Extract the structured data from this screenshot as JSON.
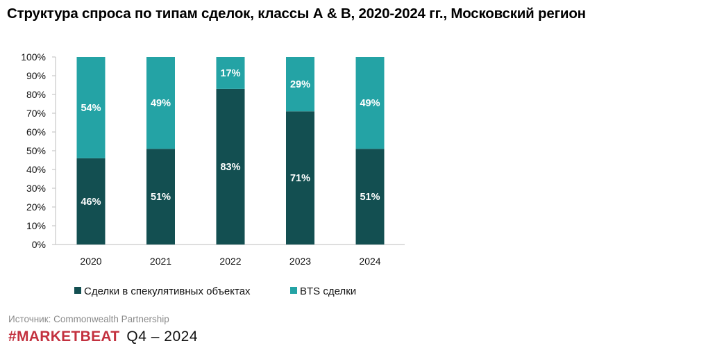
{
  "chart_data": {
    "type": "bar",
    "stacked": true,
    "title": "Структура спроса по типам сделок, классы А & B, 2020-2024 гг., Московский регион",
    "categories": [
      "2020",
      "2021",
      "2022",
      "2023",
      "2024"
    ],
    "series": [
      {
        "name": "Сделки в спекулятивных объектах",
        "values": [
          46,
          51,
          83,
          71,
          51
        ],
        "labels": [
          "46%",
          "51%",
          "83%",
          "71%",
          "51%"
        ],
        "color": "#134f51"
      },
      {
        "name": "BTS сделки",
        "values": [
          54,
          49,
          17,
          29,
          49
        ],
        "labels": [
          "54%",
          "49%",
          "17%",
          "29%",
          "49%"
        ],
        "color": "#24a3a5"
      }
    ],
    "yticks": [
      "0%",
      "10%",
      "20%",
      "30%",
      "40%",
      "50%",
      "60%",
      "70%",
      "80%",
      "90%",
      "100%"
    ],
    "ylim": [
      0,
      100
    ],
    "grid": false,
    "legend": "bottom"
  },
  "footer": {
    "source": "Источник: Commonwealth Partnership",
    "brand": "#MARKETBEAT",
    "period": "Q4 – 2024"
  },
  "colors": {
    "brand": "#c3313f"
  }
}
